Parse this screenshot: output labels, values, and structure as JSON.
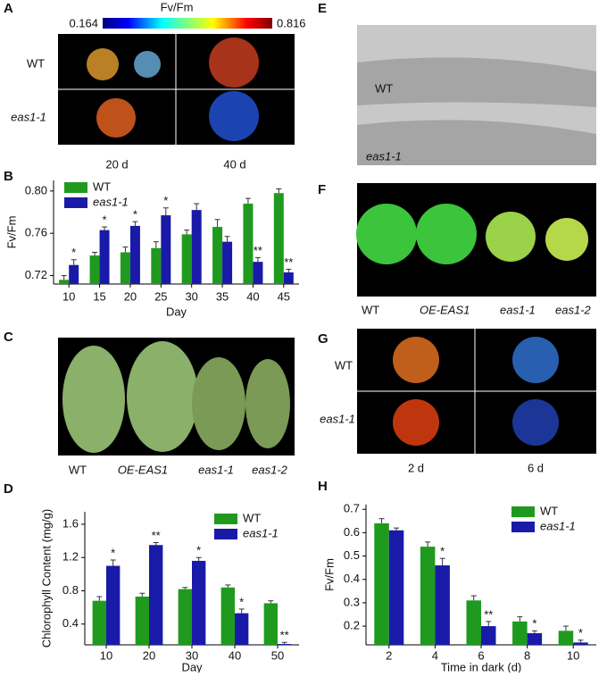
{
  "letters": [
    "A",
    "B",
    "C",
    "D",
    "E",
    "F",
    "G",
    "H"
  ],
  "figure": {
    "A": {
      "colorbar_title": "Fv/Fm",
      "colorbar_min": 0.164,
      "colorbar_max": 0.816,
      "rows": [
        "WT",
        "eas1-1"
      ],
      "columns": [
        "20 d",
        "40 d"
      ]
    },
    "C": {
      "labels": [
        "WT",
        "OE-EAS1",
        "eas1-1",
        "eas1-2"
      ]
    },
    "E": {
      "labels": [
        "WT",
        "eas1-1"
      ]
    },
    "F": {
      "labels": [
        "WT",
        "OE-EAS1",
        "eas1-1",
        "eas1-2"
      ]
    },
    "G": {
      "rows": [
        "WT",
        "eas1-1"
      ],
      "columns": [
        "2 d",
        "6 d"
      ]
    }
  },
  "chart_data": [
    {
      "type": "bar",
      "y_label": "Fv/Fm",
      "x_label": "Day",
      "categories": [
        "10",
        "15",
        "20",
        "25",
        "30",
        "35",
        "40",
        "45"
      ],
      "series": [
        {
          "name": "WT",
          "color": "#1f9a1f",
          "values": [
            0.716,
            0.739,
            0.742,
            0.746,
            0.759,
            0.766,
            0.788,
            0.798
          ],
          "errors": [
            0.004,
            0.003,
            0.005,
            0.006,
            0.004,
            0.007,
            0.005,
            0.004
          ]
        },
        {
          "name": "eas1-1",
          "color": "#1a1aa8",
          "values": [
            0.73,
            0.763,
            0.767,
            0.777,
            0.782,
            0.752,
            0.733,
            0.723
          ],
          "errors": [
            0.005,
            0.003,
            0.004,
            0.007,
            0.006,
            0.005,
            0.004,
            0.003
          ],
          "significance": [
            "*",
            "*",
            "*",
            "*",
            null,
            null,
            "**",
            "**"
          ]
        }
      ],
      "ylim": [
        0.712,
        0.81
      ],
      "yticks": [
        0.72,
        0.76,
        {
          "value": 0.8,
          "label": "0.80"
        }
      ],
      "legend": "upper left"
    },
    {
      "type": "bar",
      "y_label": "Chlorophyll Content (mg/g)",
      "x_label": "Day",
      "categories": [
        "10",
        "20",
        "30",
        "40",
        "50"
      ],
      "series": [
        {
          "name": "WT",
          "color": "#1f9a1f",
          "values": [
            0.68,
            0.73,
            0.82,
            0.84,
            0.65
          ],
          "errors": [
            0.05,
            0.04,
            0.02,
            0.03,
            0.03
          ]
        },
        {
          "name": "eas1-1",
          "color": "#1a1aa8",
          "values": [
            1.1,
            1.35,
            1.16,
            0.53,
            0.16
          ],
          "errors": [
            0.07,
            0.03,
            0.04,
            0.05,
            0.02
          ],
          "significance": [
            "*",
            "**",
            "*",
            "*",
            "**"
          ]
        }
      ],
      "ylim": [
        0.15,
        1.75
      ],
      "yticks": [
        0.4,
        0.8,
        1.2,
        1.6
      ],
      "legend": "upper right"
    },
    {
      "type": "bar",
      "y_label": "Fv/Fm",
      "x_label": "Time in dark (d)",
      "categories": [
        "2",
        "4",
        "6",
        "8",
        "10"
      ],
      "series": [
        {
          "name": "WT",
          "color": "#1f9a1f",
          "values": [
            0.64,
            0.54,
            0.31,
            0.22,
            0.18
          ],
          "errors": [
            0.02,
            0.02,
            0.02,
            0.02,
            0.02
          ],
          "significance": null
        },
        {
          "name": "eas1-1",
          "color": "#1a1aa8",
          "values": [
            0.61,
            0.46,
            0.2,
            0.17,
            0.13
          ],
          "errors": [
            0.01,
            0.03,
            0.02,
            0.01,
            0.01
          ],
          "significance": [
            null,
            "*",
            "**",
            "*",
            "*"
          ]
        }
      ],
      "ylim": [
        0.12,
        0.72
      ],
      "yticks": [
        0.2,
        0.3,
        0.4,
        0.5,
        0.6,
        0.7
      ],
      "legend": "upper right"
    }
  ]
}
